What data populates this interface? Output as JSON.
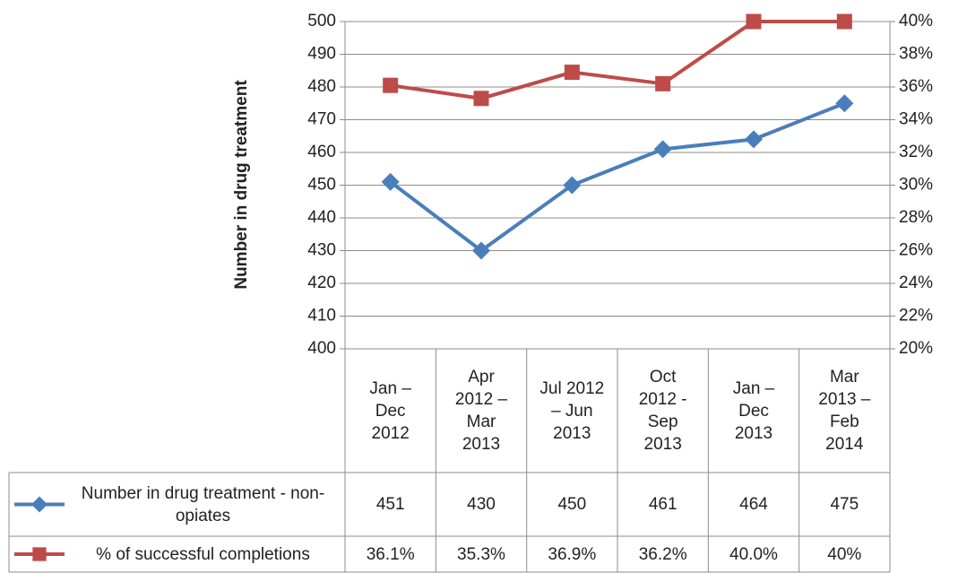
{
  "chart_data": {
    "type": "line",
    "y_label": "Number in drug treatment",
    "categories": [
      "Jan – Dec 2012",
      "Apr 2012 – Mar 2013",
      "Jul 2012 – Jun 2013",
      "Oct 2012 - Sep 2013",
      "Jan – Dec 2013",
      "Mar 2013 – Feb 2014"
    ],
    "series": [
      {
        "name": "Number in drug treatment - non-opiates",
        "color": "#4a7ebb",
        "marker": "diamond",
        "values": [
          451,
          430,
          450,
          461,
          464,
          475
        ]
      },
      {
        "name": "% of successful completions",
        "color": "#be4b48",
        "marker": "square",
        "axis": "y2",
        "values": [
          36.1,
          35.3,
          36.9,
          36.2,
          40.0,
          40
        ],
        "value_labels": [
          "36.1%",
          "35.3%",
          "36.9%",
          "36.2%",
          "40.0%",
          "40%"
        ]
      }
    ],
    "ylim": [
      400,
      500
    ],
    "yticks": [
      400,
      410,
      420,
      430,
      440,
      450,
      460,
      470,
      480,
      490,
      500
    ],
    "y2lim": [
      20,
      40
    ],
    "y2ticks": [
      {
        "value": 20,
        "label": "20%"
      },
      {
        "value": 22,
        "label": "22%"
      },
      {
        "value": 24,
        "label": "24%"
      },
      {
        "value": 26,
        "label": "26%"
      },
      {
        "value": 28,
        "label": "28%"
      },
      {
        "value": 30,
        "label": "30%"
      },
      {
        "value": 32,
        "label": "32%"
      },
      {
        "value": 34,
        "label": "34%"
      },
      {
        "value": 36,
        "label": "36%"
      },
      {
        "value": 38,
        "label": "38%"
      },
      {
        "value": 40,
        "label": "40%"
      }
    ],
    "grid": true,
    "data_table": true
  }
}
